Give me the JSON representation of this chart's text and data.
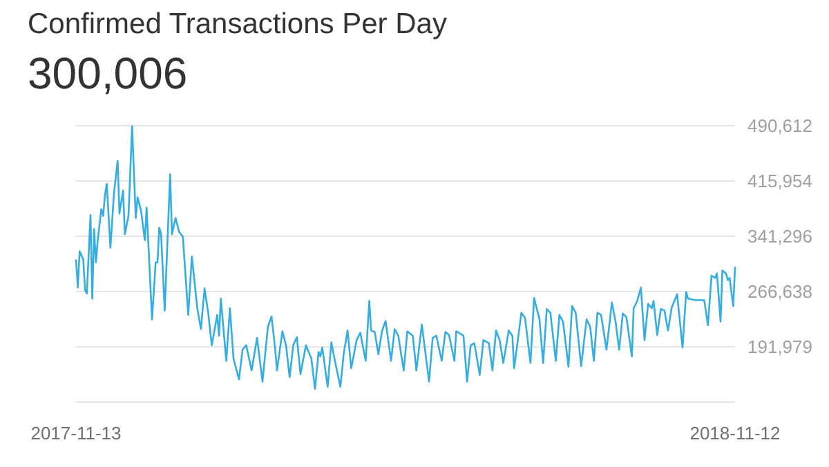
{
  "chart_data": {
    "type": "line",
    "title": "Confirmed Transactions Per Day",
    "subtitle": "300,006",
    "x": [
      "2017-11-13",
      "2017-11-14",
      "2017-11-15",
      "2017-11-17",
      "2017-11-18",
      "2017-11-19",
      "2017-11-21",
      "2017-11-22",
      "2017-11-23",
      "2017-11-24",
      "2017-11-25",
      "2017-11-27",
      "2017-11-28",
      "2017-11-29",
      "2017-11-30",
      "2017-12-02",
      "2017-12-04",
      "2017-12-06",
      "2017-12-07",
      "2017-12-09",
      "2017-12-10",
      "2017-12-12",
      "2017-12-14",
      "2017-12-16",
      "2017-12-17",
      "2017-12-19",
      "2017-12-21",
      "2017-12-22",
      "2017-12-25",
      "2017-12-27",
      "2017-12-28",
      "2017-12-29",
      "2017-12-30",
      "2018-01-01",
      "2018-01-04",
      "2018-01-05",
      "2018-01-07",
      "2018-01-09",
      "2018-01-11",
      "2018-01-14",
      "2018-01-16",
      "2018-01-19",
      "2018-01-21",
      "2018-01-23",
      "2018-01-25",
      "2018-01-27",
      "2018-01-30",
      "2018-01-31",
      "2018-02-01",
      "2018-02-04",
      "2018-02-06",
      "2018-02-08",
      "2018-02-11",
      "2018-02-13",
      "2018-02-15",
      "2018-02-18",
      "2018-02-21",
      "2018-02-24",
      "2018-02-27",
      "2018-03-01",
      "2018-03-03",
      "2018-03-04",
      "2018-03-07",
      "2018-03-09",
      "2018-03-11",
      "2018-03-13",
      "2018-03-15",
      "2018-03-17",
      "2018-03-20",
      "2018-03-23",
      "2018-03-25",
      "2018-03-27",
      "2018-03-28",
      "2018-03-29",
      "2018-04-01",
      "2018-04-03",
      "2018-04-05",
      "2018-04-08",
      "2018-04-10",
      "2018-04-12",
      "2018-04-14",
      "2018-04-17",
      "2018-04-19",
      "2018-04-22",
      "2018-04-24",
      "2018-04-25",
      "2018-04-27",
      "2018-04-29",
      "2018-05-01",
      "2018-05-03",
      "2018-05-06",
      "2018-05-08",
      "2018-05-10",
      "2018-05-13",
      "2018-05-15",
      "2018-05-18",
      "2018-05-20",
      "2018-05-23",
      "2018-05-27",
      "2018-05-29",
      "2018-05-31",
      "2018-06-03",
      "2018-06-05",
      "2018-06-07",
      "2018-06-10",
      "2018-06-11",
      "2018-06-15",
      "2018-06-17",
      "2018-06-19",
      "2018-06-21",
      "2018-06-24",
      "2018-06-26",
      "2018-06-29",
      "2018-07-01",
      "2018-07-03",
      "2018-07-05",
      "2018-07-07",
      "2018-07-10",
      "2018-07-12",
      "2018-07-13",
      "2018-07-17",
      "2018-07-19",
      "2018-07-22",
      "2018-07-24",
      "2018-07-27",
      "2018-07-29",
      "2018-07-31",
      "2018-08-02",
      "2018-08-05",
      "2018-08-07",
      "2018-08-09",
      "2018-08-12",
      "2018-08-14",
      "2018-08-16",
      "2018-08-19",
      "2018-08-22",
      "2018-08-24",
      "2018-08-26",
      "2018-08-28",
      "2018-08-30",
      "2018-09-02",
      "2018-09-05",
      "2018-09-07",
      "2018-09-09",
      "2018-09-11",
      "2018-09-13",
      "2018-09-16",
      "2018-09-17",
      "2018-09-19",
      "2018-09-21",
      "2018-09-23",
      "2018-09-25",
      "2018-09-27",
      "2018-09-28",
      "2018-09-30",
      "2018-10-02",
      "2018-10-04",
      "2018-10-06",
      "2018-10-08",
      "2018-10-11",
      "2018-10-14",
      "2018-10-16",
      "2018-10-17",
      "2018-10-21",
      "2018-10-24",
      "2018-10-26",
      "2018-10-28",
      "2018-10-30",
      "2018-11-01",
      "2018-11-02",
      "2018-11-04",
      "2018-11-05",
      "2018-11-07",
      "2018-11-08",
      "2018-11-09",
      "2018-11-11",
      "2018-11-12"
    ],
    "series": [
      {
        "color": "#35ade0",
        "values": [
          310000,
          272000,
          321000,
          310000,
          269000,
          264000,
          370000,
          257000,
          351000,
          306000,
          336000,
          378000,
          369000,
          397000,
          412000,
          326000,
          400000,
          443000,
          372000,
          403000,
          344000,
          369000,
          490000,
          366000,
          394000,
          375000,
          336000,
          380000,
          229000,
          306000,
          306000,
          353000,
          344000,
          241000,
          425000,
          344000,
          366000,
          347000,
          341000,
          235000,
          314000,
          244000,
          216000,
          271000,
          238000,
          194000,
          235000,
          207000,
          257000,
          173000,
          244000,
          176000,
          148000,
          188000,
          194000,
          160000,
          204000,
          145000,
          219000,
          233000,
          189000,
          160000,
          213000,
          194000,
          151000,
          194000,
          205000,
          155000,
          194000,
          176000,
          135000,
          185000,
          179000,
          191000,
          138000,
          198000,
          173000,
          138000,
          185000,
          214000,
          163000,
          201000,
          211000,
          173000,
          254000,
          214000,
          212000,
          182000,
          213000,
          227000,
          173000,
          216000,
          207000,
          160000,
          213000,
          207000,
          160000,
          222000,
          145000,
          204000,
          207000,
          173000,
          212000,
          208000,
          173000,
          213000,
          207000,
          145000,
          194000,
          197000,
          154000,
          201000,
          197000,
          160000,
          214000,
          201000,
          170000,
          214000,
          207000,
          163000,
          238000,
          231000,
          170000,
          258000,
          229000,
          170000,
          243000,
          238000,
          173000,
          235000,
          226000,
          165000,
          247000,
          238000,
          166000,
          229000,
          219000,
          173000,
          238000,
          235000,
          188000,
          252000,
          226000,
          188000,
          237000,
          232000,
          179000,
          244000,
          254000,
          272000,
          201000,
          250000,
          244000,
          254000,
          208000,
          243000,
          241000,
          214000,
          245000,
          263000,
          191000,
          266000,
          257000,
          255000,
          255000,
          255000,
          221000,
          288000,
          285000,
          291000,
          226000,
          295000,
          291000,
          282000,
          285000,
          247000,
          300000
        ]
      }
    ],
    "xlim": [
      "2017-11-13",
      "2018-11-12"
    ],
    "xticks": [
      "2017-11-13",
      "2018-11-12"
    ],
    "ylim": [
      117321,
      490612
    ],
    "yticks": [
      {
        "value": 117321,
        "label": null
      },
      {
        "value": 191979,
        "label": "191,979"
      },
      {
        "value": 266638,
        "label": "266,638"
      },
      {
        "value": 341296,
        "label": "341,296"
      },
      {
        "value": 415954,
        "label": "415,954"
      },
      {
        "value": 490612,
        "label": "490,612"
      }
    ],
    "grid": "y"
  }
}
